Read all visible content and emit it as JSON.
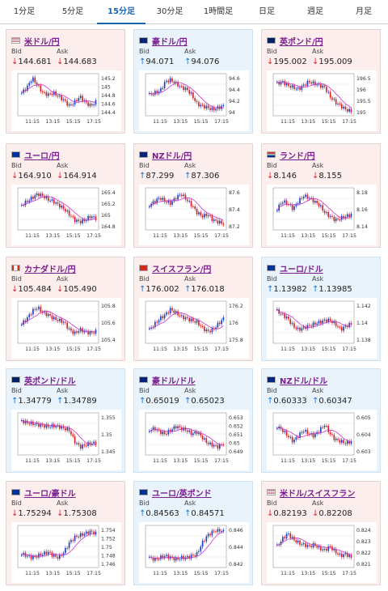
{
  "tabs": [
    "1分足",
    "5分足",
    "15分足",
    "30分足",
    "1時間足",
    "日足",
    "週足",
    "月足"
  ],
  "active_tab": 2,
  "bid_label": "Bid",
  "ask_label": "Ask",
  "time_ticks": [
    "11:15",
    "13:15",
    "15:15",
    "17:15"
  ],
  "colors": {
    "pink_bg": "#fdeeee",
    "blue_bg": "#e9f3fb",
    "up_candle": "#1a3fbf",
    "down_candle": "#d61f1f",
    "ma": "#cc33cc",
    "pair_text": "#7a1d8e"
  },
  "pairs": [
    {
      "name": "米ドル/円",
      "flag": "us",
      "bg": "pink",
      "dir": "down",
      "bid": "144.681",
      "ask": "144.683",
      "ylabels": [
        "145.2",
        "145",
        "144.8",
        "144.6",
        "144.4"
      ],
      "ymin": 144.4,
      "ymax": 145.2,
      "shape": [
        0.55,
        0.7,
        0.95,
        0.75,
        0.55,
        0.5,
        0.55,
        0.45,
        0.35,
        0.2,
        0.3,
        0.45,
        0.3,
        0.2,
        0.3
      ]
    },
    {
      "name": "豪ドル/円",
      "flag": "au",
      "bg": "blue",
      "dir": "up",
      "bid": "94.071",
      "ask": "94.076",
      "ylabels": [
        "94.6",
        "94.4",
        "94.2",
        "94"
      ],
      "ymin": 94,
      "ymax": 94.6,
      "shape": [
        0.5,
        0.55,
        0.6,
        0.85,
        0.9,
        0.8,
        0.7,
        0.65,
        0.5,
        0.25,
        0.2,
        0.15,
        0.1,
        0.15,
        0.2
      ]
    },
    {
      "name": "英ポンド/円",
      "flag": "gb",
      "bg": "pink",
      "dir": "down",
      "bid": "195.002",
      "ask": "195.009",
      "ylabels": [
        "196.5",
        "196",
        "195.5",
        "195"
      ],
      "ymin": 195,
      "ymax": 196.5,
      "shape": [
        0.8,
        0.85,
        0.75,
        0.7,
        0.65,
        0.75,
        0.85,
        0.8,
        0.75,
        0.7,
        0.45,
        0.3,
        0.2,
        0.1,
        0.05
      ]
    },
    {
      "name": "ユーロ/円",
      "flag": "eu",
      "bg": "pink",
      "dir": "down",
      "bid": "164.910",
      "ask": "164.914",
      "ylabels": [
        "165.4",
        "165.2",
        "165",
        "164.8"
      ],
      "ymin": 164.8,
      "ymax": 165.4,
      "shape": [
        0.6,
        0.7,
        0.8,
        0.9,
        0.85,
        0.75,
        0.7,
        0.6,
        0.5,
        0.35,
        0.2,
        0.15,
        0.2,
        0.3,
        0.25
      ]
    },
    {
      "name": "NZドル/円",
      "flag": "nz",
      "bg": "pink",
      "dir": "up",
      "bid": "87.299",
      "ask": "87.306",
      "ylabels": [
        "87.6",
        "87.4",
        "87.2"
      ],
      "ymin": 87.2,
      "ymax": 87.6,
      "shape": [
        0.6,
        0.7,
        0.8,
        0.7,
        0.65,
        0.8,
        0.9,
        0.75,
        0.6,
        0.4,
        0.3,
        0.35,
        0.2,
        0.15,
        0.1
      ]
    },
    {
      "name": "ランド/円",
      "flag": "za",
      "bg": "pink",
      "dir": "down",
      "bid": "8.146",
      "ask": "8.155",
      "ylabels": [
        "8.18",
        "8.16",
        "8.14"
      ],
      "ymin": 8.13,
      "ymax": 8.18,
      "shape": [
        0.5,
        0.7,
        0.65,
        0.5,
        0.7,
        0.85,
        0.8,
        0.7,
        0.6,
        0.4,
        0.3,
        0.2,
        0.25,
        0.3,
        0.35
      ]
    },
    {
      "name": "カナダドル/円",
      "flag": "ca",
      "bg": "pink",
      "dir": "down",
      "bid": "105.484",
      "ask": "105.490",
      "ylabels": [
        "105.8",
        "105.6",
        "105.4"
      ],
      "ymin": 105.3,
      "ymax": 105.9,
      "shape": [
        0.45,
        0.6,
        0.8,
        0.9,
        0.75,
        0.7,
        0.6,
        0.55,
        0.5,
        0.3,
        0.2,
        0.3,
        0.25,
        0.2,
        0.25
      ]
    },
    {
      "name": "スイスフラン/円",
      "flag": "ch",
      "bg": "pink",
      "dir": "up",
      "bid": "176.002",
      "ask": "176.018",
      "ylabels": [
        "176.2",
        "176",
        "175.8"
      ],
      "ymin": 175.7,
      "ymax": 176.3,
      "shape": [
        0.3,
        0.45,
        0.6,
        0.7,
        0.85,
        0.75,
        0.65,
        0.6,
        0.55,
        0.5,
        0.35,
        0.25,
        0.3,
        0.45,
        0.6
      ]
    },
    {
      "name": "ユーロ/ドル",
      "flag": "eu",
      "bg": "blue",
      "dir": "up",
      "bid": "1.13982",
      "ask": "1.13985",
      "ylabels": [
        "1.142",
        "1.14",
        "1.138"
      ],
      "ymin": 1.137,
      "ymax": 1.143,
      "shape": [
        0.8,
        0.7,
        0.6,
        0.4,
        0.3,
        0.35,
        0.4,
        0.45,
        0.5,
        0.55,
        0.55,
        0.45,
        0.3,
        0.4,
        0.45
      ]
    },
    {
      "name": "英ポンド/ドル",
      "flag": "gb",
      "bg": "blue",
      "dir": "up",
      "bid": "1.34779",
      "ask": "1.34789",
      "ylabels": [
        "1.355",
        "1.35",
        "1.345"
      ],
      "ymin": 1.344,
      "ymax": 1.357,
      "shape": [
        0.85,
        0.8,
        0.78,
        0.75,
        0.72,
        0.7,
        0.72,
        0.7,
        0.65,
        0.6,
        0.3,
        0.15,
        0.2,
        0.25,
        0.25
      ]
    },
    {
      "name": "豪ドル/ドル",
      "flag": "au",
      "bg": "blue",
      "dir": "up",
      "bid": "0.65019",
      "ask": "0.65023",
      "ylabels": [
        "0.653",
        "0.652",
        "0.651",
        "0.65",
        "0.649"
      ],
      "ymin": 0.6485,
      "ymax": 0.6535,
      "shape": [
        0.6,
        0.65,
        0.55,
        0.5,
        0.6,
        0.7,
        0.65,
        0.6,
        0.5,
        0.55,
        0.4,
        0.25,
        0.2,
        0.15,
        0.25
      ]
    },
    {
      "name": "NZドル/ドル",
      "flag": "nz",
      "bg": "blue",
      "dir": "up",
      "bid": "0.60333",
      "ask": "0.60347",
      "ylabels": [
        "0.605",
        "0.604",
        "0.603"
      ],
      "ymin": 0.6025,
      "ymax": 0.6055,
      "shape": [
        0.7,
        0.6,
        0.45,
        0.3,
        0.45,
        0.6,
        0.5,
        0.45,
        0.6,
        0.75,
        0.5,
        0.35,
        0.3,
        0.25,
        0.3
      ]
    },
    {
      "name": "ユーロ/豪ドル",
      "flag": "eu",
      "bg": "pink",
      "dir": "down",
      "bid": "1.75294",
      "ask": "1.75308",
      "ylabels": [
        "1.754",
        "1.752",
        "1.75",
        "1.748",
        "1.746"
      ],
      "ymin": 1.745,
      "ymax": 1.755,
      "shape": [
        0.3,
        0.25,
        0.2,
        0.25,
        0.3,
        0.35,
        0.25,
        0.2,
        0.35,
        0.6,
        0.75,
        0.8,
        0.85,
        0.9,
        0.85
      ]
    },
    {
      "name": "ユーロ/英ポンド",
      "flag": "eu",
      "bg": "blue",
      "dir": "up",
      "bid": "0.84563",
      "ask": "0.84571",
      "ylabels": [
        "0.846",
        "0.844",
        "0.842"
      ],
      "ymin": 0.8415,
      "ymax": 0.8465,
      "shape": [
        0.2,
        0.15,
        0.2,
        0.25,
        0.2,
        0.15,
        0.2,
        0.2,
        0.25,
        0.3,
        0.6,
        0.8,
        0.9,
        0.95,
        0.9
      ]
    },
    {
      "name": "米ドル/スイスフラン",
      "flag": "us",
      "bg": "pink",
      "dir": "down",
      "bid": "0.82193",
      "ask": "0.82208",
      "ylabels": [
        "0.824",
        "0.823",
        "0.822",
        "0.821"
      ],
      "ymin": 0.8205,
      "ymax": 0.8245,
      "shape": [
        0.5,
        0.7,
        0.85,
        0.7,
        0.6,
        0.55,
        0.5,
        0.55,
        0.45,
        0.4,
        0.5,
        0.35,
        0.25,
        0.3,
        0.2
      ]
    }
  ]
}
